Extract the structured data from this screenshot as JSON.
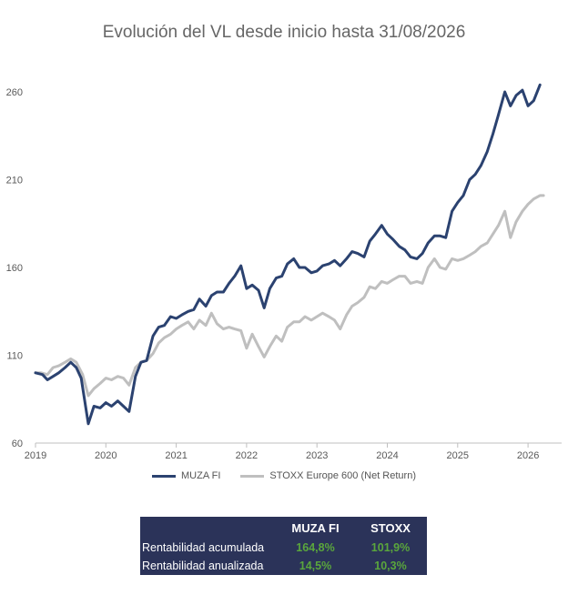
{
  "chart_data": {
    "type": "line",
    "title": "Evolución del VL desde inicio hasta 31/08/2026",
    "xlabel": "",
    "ylabel": "",
    "xlim": [
      2019,
      2026.3
    ],
    "ylim": [
      60,
      260
    ],
    "x_ticks": [
      "2019",
      "2020",
      "2021",
      "2022",
      "2023",
      "2024",
      "2025",
      "2026"
    ],
    "y_ticks": [
      "60",
      "110",
      "160",
      "210",
      "260"
    ],
    "grid": false,
    "legend_position": "bottom",
    "series": [
      {
        "name": "MUZA FI",
        "color": "#2b4270",
        "points": [
          [
            2019.0,
            100
          ],
          [
            2019.1,
            99
          ],
          [
            2019.17,
            96
          ],
          [
            2019.25,
            98
          ],
          [
            2019.33,
            100
          ],
          [
            2019.42,
            103
          ],
          [
            2019.5,
            106
          ],
          [
            2019.58,
            103
          ],
          [
            2019.65,
            97
          ],
          [
            2019.75,
            71
          ],
          [
            2019.83,
            81
          ],
          [
            2019.92,
            80
          ],
          [
            2020.0,
            83
          ],
          [
            2020.08,
            81
          ],
          [
            2020.17,
            84
          ],
          [
            2020.25,
            81
          ],
          [
            2020.33,
            78
          ],
          [
            2020.42,
            98
          ],
          [
            2020.5,
            106
          ],
          [
            2020.58,
            107
          ],
          [
            2020.67,
            121
          ],
          [
            2020.75,
            126
          ],
          [
            2020.83,
            127
          ],
          [
            2020.92,
            132
          ],
          [
            2021.0,
            131
          ],
          [
            2021.08,
            133
          ],
          [
            2021.17,
            135
          ],
          [
            2021.25,
            136
          ],
          [
            2021.33,
            142
          ],
          [
            2021.42,
            138
          ],
          [
            2021.5,
            144
          ],
          [
            2021.58,
            146
          ],
          [
            2021.67,
            146
          ],
          [
            2021.75,
            151
          ],
          [
            2021.83,
            155
          ],
          [
            2021.92,
            161
          ],
          [
            2022.0,
            148
          ],
          [
            2022.08,
            150
          ],
          [
            2022.17,
            147
          ],
          [
            2022.25,
            137
          ],
          [
            2022.33,
            148
          ],
          [
            2022.42,
            154
          ],
          [
            2022.5,
            155
          ],
          [
            2022.58,
            162
          ],
          [
            2022.67,
            165
          ],
          [
            2022.75,
            160
          ],
          [
            2022.83,
            160
          ],
          [
            2022.92,
            157
          ],
          [
            2023.0,
            158
          ],
          [
            2023.08,
            161
          ],
          [
            2023.17,
            162
          ],
          [
            2023.25,
            164
          ],
          [
            2023.33,
            161
          ],
          [
            2023.42,
            165
          ],
          [
            2023.5,
            169
          ],
          [
            2023.58,
            168
          ],
          [
            2023.67,
            166
          ],
          [
            2023.75,
            175
          ],
          [
            2023.83,
            179
          ],
          [
            2023.92,
            184
          ],
          [
            2024.0,
            179
          ],
          [
            2024.08,
            176
          ],
          [
            2024.17,
            172
          ],
          [
            2024.25,
            170
          ],
          [
            2024.33,
            166
          ],
          [
            2024.42,
            165
          ],
          [
            2024.5,
            168
          ],
          [
            2024.58,
            174
          ],
          [
            2024.67,
            178
          ],
          [
            2024.75,
            178
          ],
          [
            2024.83,
            177
          ],
          [
            2024.92,
            192
          ],
          [
            2025.0,
            197
          ],
          [
            2025.08,
            201
          ],
          [
            2025.17,
            210
          ],
          [
            2025.25,
            213
          ],
          [
            2025.33,
            218
          ],
          [
            2025.42,
            226
          ],
          [
            2025.5,
            236
          ],
          [
            2025.58,
            247
          ],
          [
            2025.67,
            260
          ],
          [
            2025.75,
            252
          ],
          [
            2025.83,
            258
          ],
          [
            2025.92,
            261
          ],
          [
            2026.0,
            252
          ],
          [
            2026.08,
            255
          ],
          [
            2026.17,
            264
          ]
        ]
      },
      {
        "name": "STOXX Europe 600 (Net Return)",
        "color": "#bfbfbf",
        "points": [
          [
            2019.0,
            100
          ],
          [
            2019.08,
            100
          ],
          [
            2019.17,
            99
          ],
          [
            2019.25,
            103
          ],
          [
            2019.33,
            104
          ],
          [
            2019.42,
            106
          ],
          [
            2019.5,
            108
          ],
          [
            2019.58,
            106
          ],
          [
            2019.67,
            99
          ],
          [
            2019.75,
            87
          ],
          [
            2019.83,
            91
          ],
          [
            2019.92,
            94
          ],
          [
            2020.0,
            97
          ],
          [
            2020.08,
            96
          ],
          [
            2020.17,
            98
          ],
          [
            2020.25,
            97
          ],
          [
            2020.33,
            93
          ],
          [
            2020.42,
            103
          ],
          [
            2020.5,
            106
          ],
          [
            2020.58,
            107
          ],
          [
            2020.67,
            111
          ],
          [
            2020.75,
            117
          ],
          [
            2020.83,
            120
          ],
          [
            2020.92,
            122
          ],
          [
            2021.0,
            125
          ],
          [
            2021.08,
            127
          ],
          [
            2021.17,
            129
          ],
          [
            2021.25,
            125
          ],
          [
            2021.33,
            130
          ],
          [
            2021.42,
            127
          ],
          [
            2021.5,
            134
          ],
          [
            2021.58,
            128
          ],
          [
            2021.67,
            125
          ],
          [
            2021.75,
            126
          ],
          [
            2021.83,
            125
          ],
          [
            2021.92,
            124
          ],
          [
            2022.0,
            114
          ],
          [
            2022.08,
            122
          ],
          [
            2022.17,
            115
          ],
          [
            2022.25,
            109
          ],
          [
            2022.33,
            115
          ],
          [
            2022.42,
            121
          ],
          [
            2022.5,
            118
          ],
          [
            2022.58,
            126
          ],
          [
            2022.67,
            129
          ],
          [
            2022.75,
            129
          ],
          [
            2022.83,
            132
          ],
          [
            2022.92,
            130
          ],
          [
            2023.0,
            132
          ],
          [
            2023.08,
            134
          ],
          [
            2023.17,
            132
          ],
          [
            2023.25,
            130
          ],
          [
            2023.33,
            125
          ],
          [
            2023.42,
            133
          ],
          [
            2023.5,
            138
          ],
          [
            2023.58,
            140
          ],
          [
            2023.67,
            143
          ],
          [
            2023.75,
            149
          ],
          [
            2023.83,
            148
          ],
          [
            2023.92,
            152
          ],
          [
            2024.0,
            151
          ],
          [
            2024.08,
            153
          ],
          [
            2024.17,
            155
          ],
          [
            2024.25,
            155
          ],
          [
            2024.33,
            151
          ],
          [
            2024.42,
            152
          ],
          [
            2024.5,
            151
          ],
          [
            2024.58,
            160
          ],
          [
            2024.67,
            165
          ],
          [
            2024.75,
            160
          ],
          [
            2024.83,
            159
          ],
          [
            2024.92,
            165
          ],
          [
            2025.0,
            164
          ],
          [
            2025.08,
            165
          ],
          [
            2025.17,
            167
          ],
          [
            2025.25,
            169
          ],
          [
            2025.33,
            172
          ],
          [
            2025.42,
            174
          ],
          [
            2025.5,
            179
          ],
          [
            2025.58,
            184
          ],
          [
            2025.67,
            192
          ],
          [
            2025.75,
            177
          ],
          [
            2025.83,
            186
          ],
          [
            2025.92,
            192
          ],
          [
            2026.0,
            196
          ],
          [
            2026.08,
            199
          ],
          [
            2026.17,
            201
          ],
          [
            2026.22,
            201
          ]
        ]
      }
    ]
  },
  "table": {
    "headers": [
      "",
      "MUZA FI",
      "STOXX"
    ],
    "rows": [
      {
        "label": "Rentabilidad acumulada",
        "muza": "164,8%",
        "stoxx": "101,9%"
      },
      {
        "label": "Rentabilidad anualizada",
        "muza": "14,5%",
        "stoxx": "10,3%"
      }
    ]
  }
}
